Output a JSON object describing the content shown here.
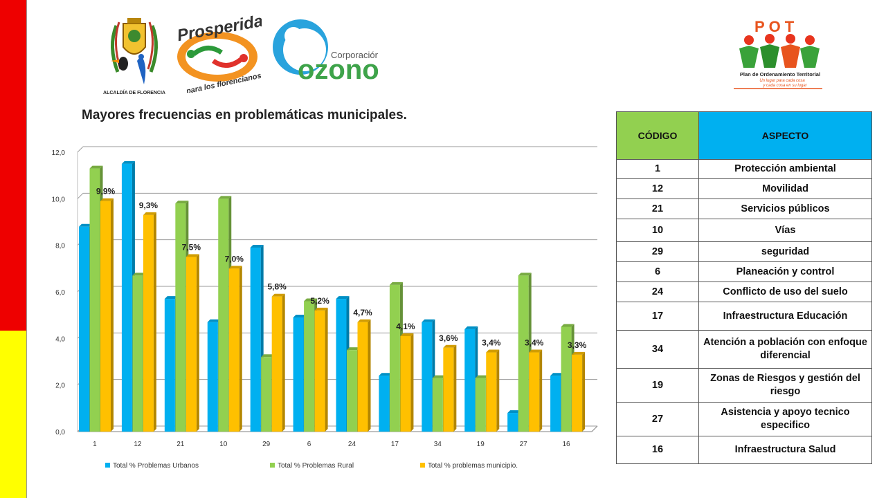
{
  "logos": {
    "alcaldia_caption": "ALCALDÍA DE FLORENCIA",
    "prosperidad_title": "Prosperidad",
    "prosperidad_subtitle": "para los florencianos",
    "ozono_prefix": "Corporación",
    "ozono_name": "ozono",
    "pot_acronym": "POT",
    "pot_name": "Plan de Ordenamiento Territorial",
    "pot_slogan_1": "Un lugar para cada cosa",
    "pot_slogan_2": "y cada cosa en su lugar"
  },
  "chart_data": {
    "type": "bar",
    "title": "Mayores frecuencias en problemáticas municipales.",
    "categories": [
      "1",
      "12",
      "21",
      "10",
      "29",
      "6",
      "24",
      "17",
      "34",
      "19",
      "27",
      "16"
    ],
    "series": [
      {
        "name": "Total % Problemas Urbanos",
        "color": "#00b0f0",
        "values": [
          8.8,
          11.5,
          5.7,
          4.7,
          7.9,
          4.9,
          5.7,
          2.4,
          4.7,
          4.4,
          0.8,
          2.4
        ]
      },
      {
        "name": "Total % Problemas Rural",
        "color": "#92d050",
        "values": [
          11.3,
          6.7,
          9.8,
          10.0,
          3.2,
          5.6,
          3.5,
          6.3,
          2.3,
          2.3,
          6.7,
          4.5
        ]
      },
      {
        "name": "Total % problemas municipio.",
        "color": "#ffc000",
        "values": [
          9.9,
          9.3,
          7.5,
          7.0,
          5.8,
          5.2,
          4.7,
          4.1,
          3.6,
          3.4,
          3.4,
          3.3
        ]
      }
    ],
    "data_labels": [
      "9,9%",
      "9,3%",
      "7,5%",
      "7,0%",
      "5,8%",
      "5,2%",
      "4,7%",
      "4,1%",
      "3,6%",
      "3,4%",
      "3,4%",
      "3,3%"
    ],
    "y_ticks": [
      "0,0",
      "2,0",
      "4,0",
      "6,0",
      "8,0",
      "10,0",
      "12,0"
    ],
    "ylim": [
      0,
      12
    ],
    "grid": true,
    "legend_position": "bottom"
  },
  "table": {
    "headers": [
      "CÓDIGO",
      "ASPECTO"
    ],
    "rows": [
      [
        "1",
        "Protección ambiental"
      ],
      [
        "12",
        "Movilidad"
      ],
      [
        "21",
        "Servicios públicos"
      ],
      [
        "10",
        "Vías"
      ],
      [
        "29",
        "seguridad"
      ],
      [
        "6",
        "Planeación y control"
      ],
      [
        "24",
        "Conflicto de uso del suelo"
      ],
      [
        "17",
        "Infraestructura Educación"
      ],
      [
        "34",
        "Atención a población con enfoque diferencial"
      ],
      [
        "19",
        "Zonas de Riesgos y gestión del riesgo"
      ],
      [
        "27",
        "Asistencia y apoyo tecnico especifico"
      ],
      [
        "16",
        "Infraestructura Salud"
      ]
    ]
  }
}
